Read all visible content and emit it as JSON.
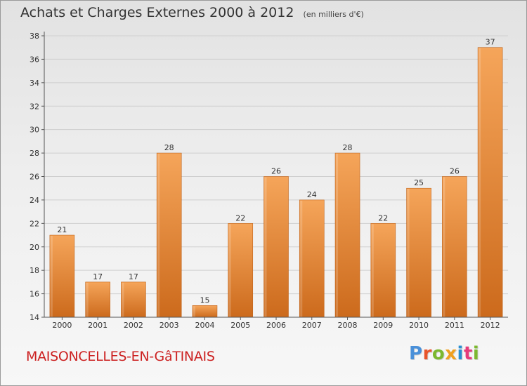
{
  "header": {
    "title": "Achats et Charges Externes 2000 à 2012",
    "unit": "(en milliers d'€)"
  },
  "footer": {
    "place_name": "MAISONCELLES-EN-GâTINAIS",
    "brand": "Proxiti",
    "brand_colors": [
      "#4a90d9",
      "#e8542a",
      "#7cb82f",
      "#f0a020",
      "#2a8fd0",
      "#e63b7a",
      "#7cb82f"
    ]
  },
  "colors": {
    "bar_top": "#f5a55a",
    "bar_bottom": "#cc6a1c",
    "axis": "#555555",
    "grid": "#cfcfcf"
  },
  "chart_data": {
    "type": "bar",
    "title": "Achats et Charges Externes 2000 à 2012",
    "subtitle": "(en milliers d'€)",
    "categories": [
      "2000",
      "2001",
      "2002",
      "2003",
      "2004",
      "2005",
      "2006",
      "2007",
      "2008",
      "2009",
      "2010",
      "2011",
      "2012"
    ],
    "values": [
      21,
      17,
      17,
      28,
      15,
      22,
      26,
      24,
      28,
      22,
      25,
      26,
      37
    ],
    "data_labels": [
      "21",
      "17",
      "17",
      "28",
      "15",
      "22",
      "26",
      "24",
      "28",
      "22",
      "25",
      "26",
      "37"
    ],
    "ylim": [
      14,
      38
    ],
    "yticks": [
      14,
      16,
      18,
      20,
      22,
      24,
      26,
      28,
      30,
      32,
      34,
      36,
      38
    ],
    "ytick_labels": [
      "14",
      "16",
      "18",
      "20",
      "22",
      "24",
      "26",
      "28",
      "30",
      "32",
      "34",
      "36",
      "38"
    ],
    "xlabel": "",
    "ylabel": "",
    "grid": "horizontal",
    "legend": "none"
  }
}
